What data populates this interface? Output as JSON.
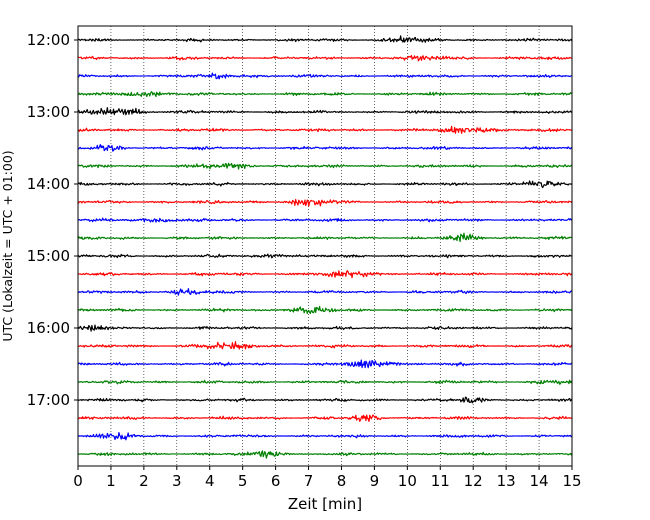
{
  "chart_data": {
    "type": "line",
    "title": "",
    "xlabel": "Zeit  [min]",
    "ylabel": "UTC (Lokalzeit = UTC + 01:00)",
    "xlim": [
      0,
      15
    ],
    "x_ticks": [
      "0",
      "1",
      "2",
      "3",
      "4",
      "5",
      "6",
      "7",
      "8",
      "9",
      "10",
      "11",
      "12",
      "13",
      "14",
      "15"
    ],
    "y_ticks": [
      {
        "label": "12:00",
        "trace": 0
      },
      {
        "label": "13:00",
        "trace": 4
      },
      {
        "label": "14:00",
        "trace": 8
      },
      {
        "label": "15:00",
        "trace": 12
      },
      {
        "label": "16:00",
        "trace": 16
      },
      {
        "label": "17:00",
        "trace": 20
      }
    ],
    "grid": "vertical dotted at each minute",
    "trace_count": 24,
    "trace_interval_min": 15,
    "trace_colors": [
      "#000000",
      "#ff0000",
      "#0000ff",
      "#008000"
    ],
    "series": [
      {
        "start": "12:00",
        "color": "#000000"
      },
      {
        "start": "12:15",
        "color": "#ff0000"
      },
      {
        "start": "12:30",
        "color": "#0000ff"
      },
      {
        "start": "12:45",
        "color": "#008000"
      },
      {
        "start": "13:00",
        "color": "#000000"
      },
      {
        "start": "13:15",
        "color": "#ff0000"
      },
      {
        "start": "13:30",
        "color": "#0000ff"
      },
      {
        "start": "13:45",
        "color": "#008000"
      },
      {
        "start": "14:00",
        "color": "#000000"
      },
      {
        "start": "14:15",
        "color": "#ff0000"
      },
      {
        "start": "14:30",
        "color": "#0000ff"
      },
      {
        "start": "14:45",
        "color": "#008000"
      },
      {
        "start": "15:00",
        "color": "#000000"
      },
      {
        "start": "15:15",
        "color": "#ff0000"
      },
      {
        "start": "15:30",
        "color": "#0000ff"
      },
      {
        "start": "15:45",
        "color": "#008000"
      },
      {
        "start": "16:00",
        "color": "#000000"
      },
      {
        "start": "16:15",
        "color": "#ff0000"
      },
      {
        "start": "16:30",
        "color": "#0000ff"
      },
      {
        "start": "16:45",
        "color": "#008000"
      },
      {
        "start": "17:00",
        "color": "#000000"
      },
      {
        "start": "17:15",
        "color": "#ff0000"
      },
      {
        "start": "17:30",
        "color": "#0000ff"
      },
      {
        "start": "17:45",
        "color": "#008000"
      }
    ]
  }
}
